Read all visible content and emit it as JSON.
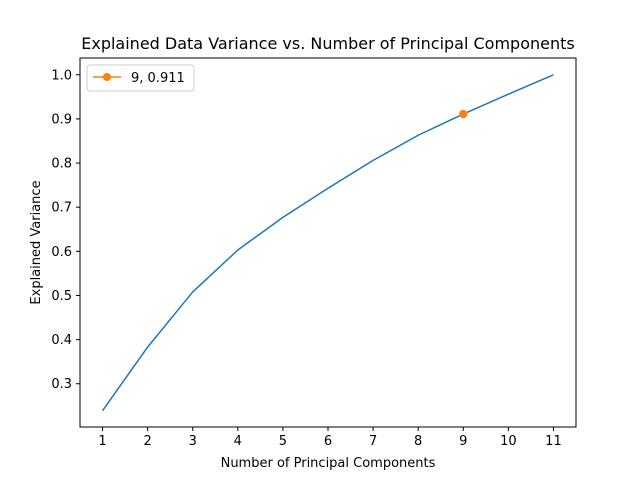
{
  "chart_data": {
    "type": "line",
    "title": "Explained Data Variance vs. Number of Principal Components",
    "xlabel": "Number of Principal Components",
    "ylabel": "Explained Variance",
    "x": [
      1,
      2,
      3,
      4,
      5,
      6,
      7,
      8,
      9,
      10,
      11
    ],
    "x_ticks": [
      "1",
      "2",
      "3",
      "4",
      "5",
      "6",
      "7",
      "8",
      "9",
      "10",
      "11"
    ],
    "y_ticks": [
      "0.3",
      "0.4",
      "0.5",
      "0.6",
      "0.7",
      "0.8",
      "0.9",
      "1.0"
    ],
    "xlim": [
      0.5,
      11.5
    ],
    "ylim": [
      0.202,
      1.038
    ],
    "grid": false,
    "legend_position": "top-left",
    "series": [
      {
        "values": [
          0.239,
          0.383,
          0.508,
          0.603,
          0.677,
          0.743,
          0.806,
          0.863,
          0.911,
          0.956,
          1.0
        ],
        "color": "#1f77b4"
      }
    ],
    "highlight": {
      "name": "9, 0.911",
      "x": 9,
      "y": 0.911,
      "color": "#ff7f0e"
    }
  }
}
